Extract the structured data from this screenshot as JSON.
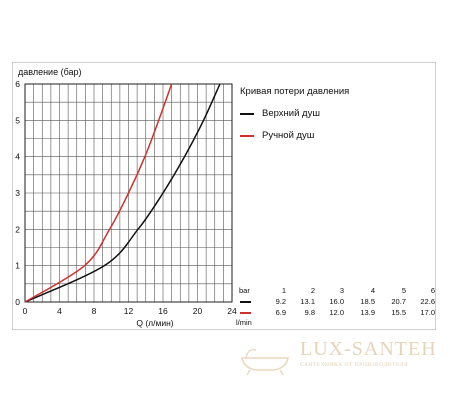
{
  "chart_data": {
    "type": "line",
    "ylabel": "давление (бар)",
    "xlabel": "Q (л/мин)",
    "legend_title": "Кривая потери давления",
    "legend_position": "top-right",
    "xlim": [
      0,
      24
    ],
    "ylim": [
      0,
      6
    ],
    "grid": true,
    "x_ticks": [
      "0",
      "4",
      "8",
      "12",
      "16",
      "20",
      "24"
    ],
    "y_ticks": [
      "0",
      "1",
      "2",
      "3",
      "4",
      "5",
      "6"
    ],
    "series": [
      {
        "name": "Верхний душ",
        "color": "#111111",
        "x": [
          0,
          9.2,
          13.1,
          16.0,
          18.5,
          20.7,
          22.6
        ],
        "y": [
          0,
          1,
          2,
          3,
          4,
          5,
          6
        ]
      },
      {
        "name": "Ручной душ",
        "color": "#d0312d",
        "x": [
          0,
          6.9,
          9.8,
          12.0,
          13.9,
          15.5,
          17.0
        ],
        "y": [
          0,
          1,
          2,
          3,
          4,
          5,
          6
        ]
      }
    ]
  },
  "table": {
    "unit_bar": "bar",
    "unit_flow": "l/min",
    "headers": [
      "1",
      "2",
      "3",
      "4",
      "5",
      "6"
    ],
    "rows": [
      {
        "color": "#111111",
        "values": [
          "9.2",
          "13.1",
          "16.0",
          "18.5",
          "20.7",
          "22.6"
        ]
      },
      {
        "color": "#d0312d",
        "values": [
          "6.9",
          "9.8",
          "12.0",
          "13.9",
          "15.5",
          "17.0"
        ]
      }
    ]
  },
  "watermark": {
    "text": "LUX-SANTEH",
    "subtext": "САНТЕХНИКА ОТ ПРОИЗВОДИТЕЛЯ"
  }
}
